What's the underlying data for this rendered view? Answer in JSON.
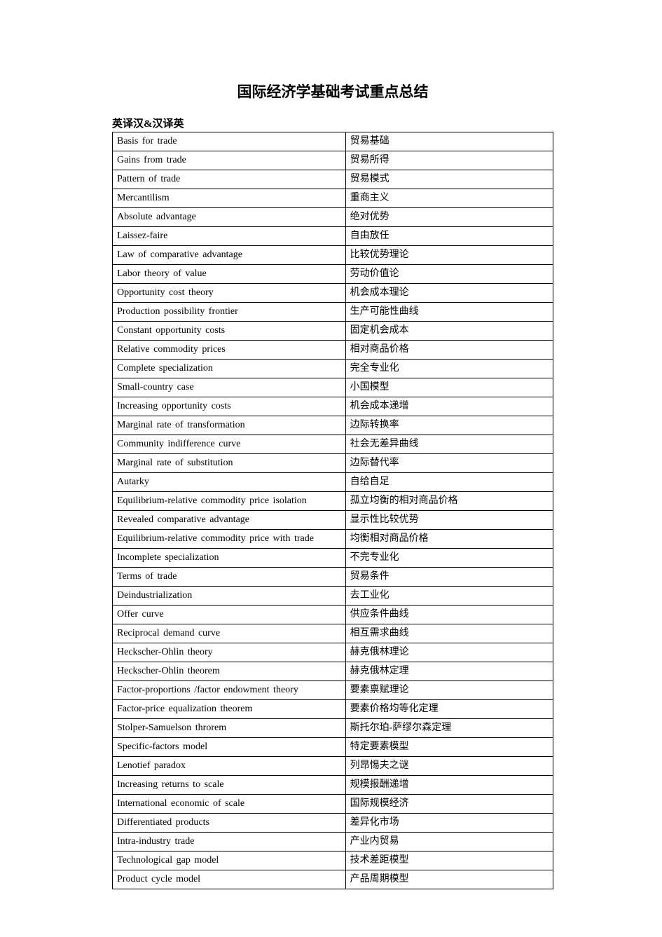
{
  "document": {
    "title": "国际经济学基础考试重点总结",
    "section_label": "英译汉&汉译英",
    "title_fontsize": 21,
    "label_fontsize": 15,
    "cell_fontsize": 14,
    "text_color": "#000000",
    "background_color": "#ffffff",
    "border_color": "#000000",
    "table": {
      "columns": [
        "english",
        "chinese"
      ],
      "col_widths_pct": [
        53,
        47
      ],
      "rows": [
        {
          "en": "Basis for trade",
          "zh": "贸易基础"
        },
        {
          "en": "Gains from trade",
          "zh": "贸易所得"
        },
        {
          "en": "Pattern of trade",
          "zh": "贸易模式"
        },
        {
          "en": "Mercantilism",
          "zh": "重商主义"
        },
        {
          "en": "Absolute advantage",
          "zh": "绝对优势"
        },
        {
          "en": "Laissez-faire",
          "zh": "自由放任"
        },
        {
          "en": "Law of comparative advantage",
          "zh": "比较优势理论"
        },
        {
          "en": "Labor theory of value",
          "zh": "劳动价值论"
        },
        {
          "en": "Opportunity cost theory",
          "zh": "机会成本理论"
        },
        {
          "en": "Production possibility frontier",
          "zh": "生产可能性曲线"
        },
        {
          "en": "Constant opportunity costs",
          "zh": "固定机会成本"
        },
        {
          "en": "Relative commodity prices",
          "zh": "相对商品价格"
        },
        {
          "en": "Complete specialization",
          "zh": "完全专业化"
        },
        {
          "en": "Small-country case",
          "zh": "小国模型"
        },
        {
          "en": "Increasing opportunity costs",
          "zh": "机会成本递增"
        },
        {
          "en": "Marginal rate of transformation",
          "zh": "边际转换率"
        },
        {
          "en": "Community indifference curve",
          "zh": "社会无差异曲线"
        },
        {
          "en": "Marginal rate of substitution",
          "zh": "边际替代率"
        },
        {
          "en": "Autarky",
          "zh": "自给自足"
        },
        {
          "en": "Equilibrium-relative commodity price isolation",
          "zh": "孤立均衡的相对商品价格"
        },
        {
          "en": "Revealed comparative advantage",
          "zh": "显示性比较优势"
        },
        {
          "en": "Equilibrium-relative commodity price with trade",
          "zh": "均衡相对商品价格"
        },
        {
          "en": "Incomplete specialization",
          "zh": "不完专业化"
        },
        {
          "en": "Terms of trade",
          "zh": "贸易条件"
        },
        {
          "en": "Deindustrialization",
          "zh": "去工业化"
        },
        {
          "en": "Offer curve",
          "zh": "供应条件曲线"
        },
        {
          "en": "Reciprocal demand curve",
          "zh": "相互需求曲线"
        },
        {
          "en": "Heckscher-Ohlin theory",
          "zh": "赫克俄林理论"
        },
        {
          "en": "Heckscher-Ohlin theorem",
          "zh": "赫克俄林定理"
        },
        {
          "en": "Factor-proportions /factor endowment theory",
          "zh": "要素禀赋理论"
        },
        {
          "en": "Factor-price equalization theorem",
          "zh": "要素价格均等化定理"
        },
        {
          "en": "Stolper-Samuelson throrem",
          "zh": "斯托尔珀-萨缪尔森定理"
        },
        {
          "en": "Specific-factors model",
          "zh": "特定要素模型"
        },
        {
          "en": "Lenotief paradox",
          "zh": "列昂惕夫之谜"
        },
        {
          "en": "Increasing returns to scale",
          "zh": "规模报酬递增"
        },
        {
          "en": "International economic of scale",
          "zh": "国际规模经济"
        },
        {
          "en": "Differentiated products",
          "zh": "差异化市场"
        },
        {
          "en": "Intra-industry trade",
          "zh": "产业内贸易"
        },
        {
          "en": "Technological gap model",
          "zh": "技术差距模型"
        },
        {
          "en": "Product cycle model",
          "zh": "产品周期模型"
        }
      ]
    }
  }
}
